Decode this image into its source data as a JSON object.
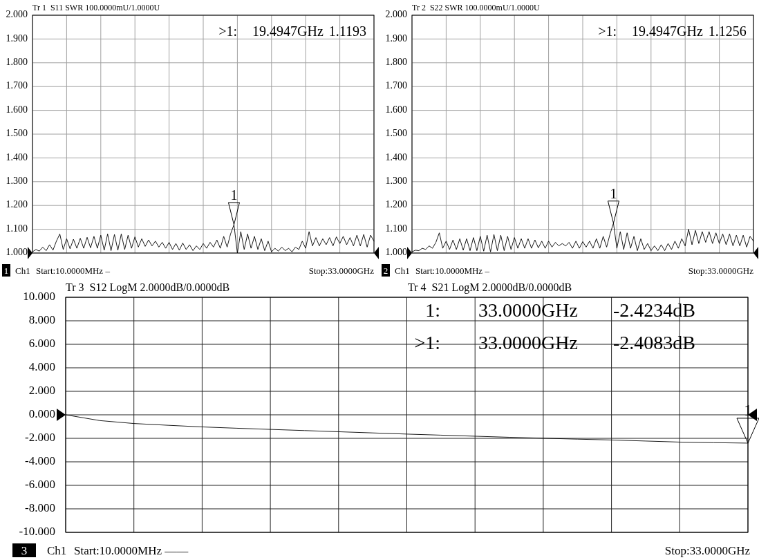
{
  "chart_data": [
    {
      "type": "line",
      "title": "Tr 1  S11 SWR 100.0000mU/1.0000U",
      "ylim": [
        1,
        2
      ],
      "yticks": [
        {
          "value": 1,
          "label": "1.000"
        },
        {
          "value": 1.1,
          "label": "1.100"
        },
        {
          "value": 1.2,
          "label": "1.200"
        },
        {
          "value": 1.3,
          "label": "1.300"
        },
        {
          "value": 1.4,
          "label": "1.400"
        },
        {
          "value": 1.5,
          "label": "1.500"
        },
        {
          "value": 1.6,
          "label": "1.600"
        },
        {
          "value": 1.7,
          "label": "1.700"
        },
        {
          "value": 1.8,
          "label": "1.800"
        },
        {
          "value": 1.9,
          "label": "1.900"
        },
        {
          "value": 2,
          "label": "2.000"
        }
      ],
      "grid": true,
      "categories": [
        null,
        null,
        null,
        null,
        null,
        null,
        null,
        null,
        null,
        null,
        null,
        null,
        null,
        null,
        null,
        null,
        null,
        null,
        null,
        null,
        null,
        null,
        null,
        null,
        null,
        null,
        null,
        null,
        null,
        null,
        null,
        null,
        null,
        null,
        null,
        null,
        null,
        null,
        null,
        null,
        null,
        null,
        null,
        null,
        null,
        null,
        null,
        null,
        null,
        null,
        null,
        null,
        null,
        null,
        null,
        null,
        null,
        null,
        null,
        null,
        null,
        null,
        null,
        null,
        null,
        null,
        null,
        null,
        null,
        null,
        null,
        null,
        null,
        null,
        null,
        null,
        null,
        null,
        null,
        null,
        null,
        null,
        null,
        null,
        null,
        null,
        null,
        null,
        null,
        null,
        null,
        null,
        null,
        null,
        null,
        null,
        null,
        null,
        null,
        null,
        null
      ],
      "series": [
        {
          "color": "#000000",
          "values": [
            1.005,
            1.015,
            1.008,
            1.025,
            1.01,
            1.035,
            1.012,
            1.05,
            1.08,
            1.015,
            1.06,
            1.018,
            1.058,
            1.02,
            1.062,
            1.02,
            1.066,
            1.022,
            1.07,
            1.02,
            1.075,
            1.012,
            1.08,
            1.01,
            1.078,
            1.012,
            1.08,
            1.015,
            1.075,
            1.02,
            1.068,
            1.025,
            1.06,
            1.028,
            1.055,
            1.03,
            1.05,
            1.025,
            1.045,
            1.02,
            1.045,
            1.015,
            1.04,
            1.012,
            1.042,
            1.015,
            1.035,
            1.01,
            1.03,
            1.015,
            1.04,
            1.02,
            1.045,
            1.025,
            1.055,
            1.02,
            1.07,
            1.025,
            1.08,
            1.1193,
            1.0,
            1.09,
            1.015,
            1.08,
            1.02,
            1.07,
            1.015,
            1.06,
            1.01,
            1.05,
            1.005,
            1.02,
            1.008,
            1.025,
            1.01,
            1.02,
            1.005,
            1.025,
            1.015,
            1.05,
            1.02,
            1.09,
            1.03,
            1.065,
            1.03,
            1.06,
            1.035,
            1.065,
            1.03,
            1.068,
            1.04,
            1.07,
            1.035,
            1.065,
            1.03,
            1.075,
            1.03,
            1.078,
            1.025,
            1.075,
            1.05
          ]
        }
      ],
      "annotations": [
        {
          "text": "1",
          "y": 1.1193
        },
        ">1:   19.4947GHz 1.1193",
        "1",
        "Ch1",
        "Start:10.0000MHz –",
        "Stop:33.0000GHz"
      ]
    },
    {
      "type": "line",
      "title": "Tr 2  S22 SWR 100.0000mU/1.0000U",
      "ylim": [
        1,
        2
      ],
      "yticks": [
        {
          "value": 1,
          "label": "1.000"
        },
        {
          "value": 1.1,
          "label": "1.100"
        },
        {
          "value": 1.2,
          "label": "1.200"
        },
        {
          "value": 1.3,
          "label": "1.300"
        },
        {
          "value": 1.4,
          "label": "1.400"
        },
        {
          "value": 1.5,
          "label": "1.500"
        },
        {
          "value": 1.6,
          "label": "1.600"
        },
        {
          "value": 1.7,
          "label": "1.700"
        },
        {
          "value": 1.8,
          "label": "1.800"
        },
        {
          "value": 1.9,
          "label": "1.900"
        },
        {
          "value": 2,
          "label": "2.000"
        }
      ],
      "grid": true,
      "categories": [
        null,
        null,
        null,
        null,
        null,
        null,
        null,
        null,
        null,
        null,
        null,
        null,
        null,
        null,
        null,
        null,
        null,
        null,
        null,
        null,
        null,
        null,
        null,
        null,
        null,
        null,
        null,
        null,
        null,
        null,
        null,
        null,
        null,
        null,
        null,
        null,
        null,
        null,
        null,
        null,
        null,
        null,
        null,
        null,
        null,
        null,
        null,
        null,
        null,
        null,
        null,
        null,
        null,
        null,
        null,
        null,
        null,
        null,
        null,
        null,
        null,
        null,
        null,
        null,
        null,
        null,
        null,
        null,
        null,
        null,
        null,
        null,
        null,
        null,
        null,
        null,
        null,
        null,
        null,
        null,
        null,
        null,
        null,
        null,
        null,
        null,
        null,
        null,
        null,
        null,
        null,
        null,
        null,
        null,
        null,
        null,
        null,
        null,
        null,
        null,
        null
      ],
      "series": [
        {
          "color": "#000000",
          "values": [
            1.005,
            1.012,
            1.01,
            1.02,
            1.015,
            1.03,
            1.02,
            1.045,
            1.085,
            1.02,
            1.05,
            1.015,
            1.055,
            1.015,
            1.06,
            1.012,
            1.06,
            1.01,
            1.065,
            1.01,
            1.07,
            1.008,
            1.075,
            1.005,
            1.078,
            1.01,
            1.075,
            1.01,
            1.07,
            1.015,
            1.065,
            1.02,
            1.06,
            1.02,
            1.06,
            1.02,
            1.055,
            1.022,
            1.05,
            1.02,
            1.05,
            1.025,
            1.045,
            1.03,
            1.04,
            1.03,
            1.045,
            1.02,
            1.05,
            1.02,
            1.048,
            1.025,
            1.05,
            1.02,
            1.06,
            1.02,
            1.07,
            1.025,
            1.08,
            1.1256,
            1.02,
            1.09,
            1.015,
            1.085,
            1.02,
            1.07,
            1.01,
            1.06,
            1.015,
            1.04,
            1.01,
            1.03,
            1.01,
            1.035,
            1.01,
            1.04,
            1.015,
            1.05,
            1.02,
            1.06,
            1.03,
            1.1,
            1.035,
            1.095,
            1.04,
            1.09,
            1.045,
            1.09,
            1.04,
            1.085,
            1.04,
            1.08,
            1.035,
            1.08,
            1.03,
            1.075,
            1.03,
            1.075,
            1.025,
            1.07,
            1.05
          ]
        }
      ],
      "annotations": [
        {
          "text": "1",
          "y": 1.1256
        },
        ">1:   19.4947GHz 1.1256",
        "2",
        "Ch1",
        "Start:10.0000MHz –",
        "Stop:33.0000GHz"
      ]
    },
    {
      "type": "line",
      "title": "Tr 3  S12 LogM 2.0000dB/0.0000dB",
      "subtitle": "Tr 4  S21 LogM 2.0000dB/0.0000dB",
      "ylim": [
        -10,
        10
      ],
      "yticks": [
        {
          "value": -10,
          "label": "-10.000"
        },
        {
          "value": -8,
          "label": "-8.000"
        },
        {
          "value": -6,
          "label": "-6.000"
        },
        {
          "value": -4,
          "label": "-4.000"
        },
        {
          "value": -2,
          "label": "-2.000"
        },
        {
          "value": 0,
          "label": "0.000"
        },
        {
          "value": 2,
          "label": "2.000"
        },
        {
          "value": 4,
          "label": "4.000"
        },
        {
          "value": 6,
          "label": "6.000"
        },
        {
          "value": 8,
          "label": "8.000"
        },
        {
          "value": 10,
          "label": "10.000"
        }
      ],
      "grid": true,
      "categories": [
        null,
        null,
        null,
        null,
        null,
        null,
        null,
        null,
        null,
        null,
        null,
        null,
        null,
        null,
        null,
        null,
        null,
        null,
        null,
        null,
        null
      ],
      "series": [
        {
          "color": "#000000",
          "values": [
            0,
            -0.49,
            -0.74,
            -0.89,
            -1.03,
            -1.14,
            -1.24,
            -1.34,
            -1.44,
            -1.54,
            -1.64,
            -1.73,
            -1.82,
            -1.91,
            -1.99,
            -2.07,
            -2.14,
            -2.23,
            -2.32,
            -2.37,
            -2.4083
          ]
        }
      ],
      "annotations": [
        {
          "text": "1",
          "y": -2.4083
        },
        "1:   33.0000GHz -2.4234dB",
        ">1:   33.0000GHz -2.4083dB",
        "3",
        "Ch1",
        "Start:10.0000MHz ——",
        "Stop:33.0000GHz"
      ]
    }
  ]
}
